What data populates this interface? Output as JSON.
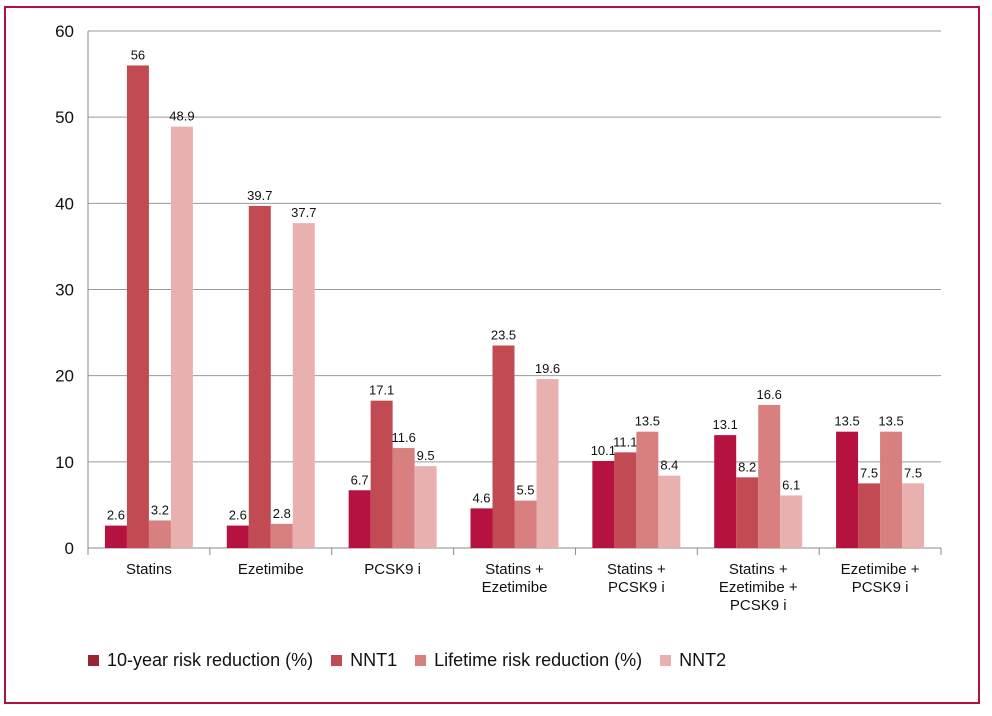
{
  "chart_data": {
    "type": "bar",
    "title": "",
    "xlabel": "",
    "ylabel": "",
    "ylim": [
      0,
      60
    ],
    "yticks": [
      "0",
      "10",
      "20",
      "30",
      "40",
      "50",
      "60"
    ],
    "categories": [
      [
        "Statins"
      ],
      [
        "Ezetimibe"
      ],
      [
        "PCSK9 i"
      ],
      [
        "Statins +",
        "Ezetimibe"
      ],
      [
        "Statins +",
        "PCSK9 i"
      ],
      [
        "Statins +",
        "Ezetimibe +",
        "PCSK9 i"
      ],
      [
        "Ezetimibe +",
        "PCSK9 i"
      ]
    ],
    "series": [
      {
        "name": "10-year risk reduction (%)",
        "color": "#b5123f",
        "legend_color": "#9b2434",
        "values": [
          2.6,
          2.6,
          6.7,
          4.6,
          10.1,
          13.1,
          13.5
        ],
        "labels": [
          "2.6",
          "2.6",
          "6.7",
          "4.6",
          "10.1",
          "13.1",
          "13.5"
        ]
      },
      {
        "name": "NNT1",
        "color": "#c24a53",
        "legend_color": "#c24a53",
        "values": [
          56,
          39.7,
          17.1,
          23.5,
          11.1,
          8.2,
          7.5
        ],
        "labels": [
          "56",
          "39.7",
          "17.1",
          "23.5",
          "11.1",
          "8.2",
          "7.5"
        ]
      },
      {
        "name": "Lifetime risk reduction (%)",
        "color": "#d8807f",
        "legend_color": "#d8807f",
        "values": [
          3.2,
          2.8,
          11.6,
          5.5,
          13.5,
          16.6,
          13.5
        ],
        "labels": [
          "3.2",
          "2.8",
          "11.6",
          "5.5",
          "13.5",
          "16.6",
          "13.5"
        ]
      },
      {
        "name": "NNT2",
        "color": "#e8b1b0",
        "legend_color": "#e8b1b0",
        "values": [
          48.9,
          37.7,
          9.5,
          19.6,
          8.4,
          6.1,
          7.5
        ],
        "labels": [
          "48.9",
          "37.7",
          "9.5",
          "19.6",
          "8.4",
          "6.1",
          "7.5"
        ]
      }
    ],
    "grid": true,
    "legend_position": "bottom"
  }
}
